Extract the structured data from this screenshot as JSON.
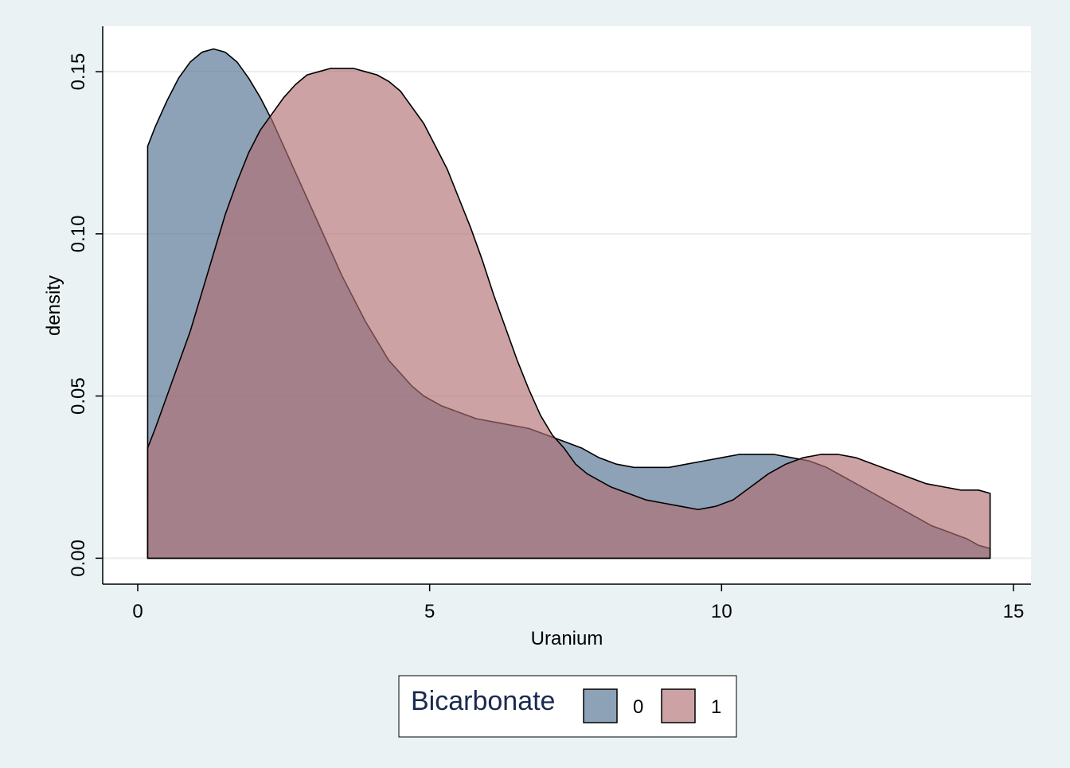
{
  "chart_data": {
    "type": "area",
    "subtype": "kernel-density",
    "xlabel": "Uranium",
    "ylabel": "density",
    "xlim": [
      -0.6,
      15.3
    ],
    "ylim": [
      -0.008,
      0.164
    ],
    "xticks": [
      0,
      5,
      10,
      15
    ],
    "xtick_labels": [
      "0",
      "5",
      "10",
      "15"
    ],
    "yticks": [
      0,
      0.05,
      0.1,
      0.15
    ],
    "ytick_labels": [
      "0.00",
      "0.05",
      "0.10",
      "0.15"
    ],
    "grid": "horizontal",
    "legend": {
      "title": "Bicarbonate",
      "position": "bottom-center",
      "entries": [
        "0",
        "1"
      ]
    },
    "series": [
      {
        "name": "0",
        "color": "#4d6d8e",
        "opacity": 0.64,
        "points": [
          [
            0.17,
            0.127
          ],
          [
            0.3,
            0.133
          ],
          [
            0.5,
            0.141
          ],
          [
            0.7,
            0.148
          ],
          [
            0.9,
            0.153
          ],
          [
            1.1,
            0.156
          ],
          [
            1.3,
            0.157
          ],
          [
            1.5,
            0.156
          ],
          [
            1.7,
            0.153
          ],
          [
            1.9,
            0.148
          ],
          [
            2.1,
            0.142
          ],
          [
            2.3,
            0.135
          ],
          [
            2.5,
            0.127
          ],
          [
            2.7,
            0.119
          ],
          [
            2.9,
            0.111
          ],
          [
            3.1,
            0.103
          ],
          [
            3.3,
            0.095
          ],
          [
            3.5,
            0.087
          ],
          [
            3.7,
            0.08
          ],
          [
            3.9,
            0.073
          ],
          [
            4.1,
            0.067
          ],
          [
            4.3,
            0.061
          ],
          [
            4.5,
            0.057
          ],
          [
            4.7,
            0.053
          ],
          [
            4.9,
            0.05
          ],
          [
            5.2,
            0.047
          ],
          [
            5.5,
            0.045
          ],
          [
            5.8,
            0.043
          ],
          [
            6.1,
            0.042
          ],
          [
            6.4,
            0.041
          ],
          [
            6.7,
            0.04
          ],
          [
            7.0,
            0.038
          ],
          [
            7.3,
            0.036
          ],
          [
            7.6,
            0.034
          ],
          [
            7.9,
            0.031
          ],
          [
            8.2,
            0.029
          ],
          [
            8.5,
            0.028
          ],
          [
            8.8,
            0.028
          ],
          [
            9.1,
            0.028
          ],
          [
            9.4,
            0.029
          ],
          [
            9.7,
            0.03
          ],
          [
            10.0,
            0.031
          ],
          [
            10.3,
            0.032
          ],
          [
            10.6,
            0.032
          ],
          [
            10.9,
            0.032
          ],
          [
            11.2,
            0.031
          ],
          [
            11.5,
            0.03
          ],
          [
            11.8,
            0.028
          ],
          [
            12.1,
            0.025
          ],
          [
            12.4,
            0.022
          ],
          [
            12.7,
            0.019
          ],
          [
            13.0,
            0.016
          ],
          [
            13.3,
            0.013
          ],
          [
            13.6,
            0.01
          ],
          [
            13.9,
            0.008
          ],
          [
            14.2,
            0.006
          ],
          [
            14.4,
            0.004
          ],
          [
            14.6,
            0.003
          ]
        ]
      },
      {
        "name": "1",
        "color": "#b06d71",
        "opacity": 0.64,
        "points": [
          [
            0.17,
            0.034
          ],
          [
            0.3,
            0.04
          ],
          [
            0.5,
            0.05
          ],
          [
            0.7,
            0.06
          ],
          [
            0.9,
            0.07
          ],
          [
            1.1,
            0.082
          ],
          [
            1.3,
            0.094
          ],
          [
            1.5,
            0.106
          ],
          [
            1.7,
            0.116
          ],
          [
            1.9,
            0.125
          ],
          [
            2.1,
            0.132
          ],
          [
            2.3,
            0.137
          ],
          [
            2.5,
            0.142
          ],
          [
            2.7,
            0.146
          ],
          [
            2.9,
            0.149
          ],
          [
            3.1,
            0.15
          ],
          [
            3.3,
            0.151
          ],
          [
            3.5,
            0.151
          ],
          [
            3.7,
            0.151
          ],
          [
            3.9,
            0.15
          ],
          [
            4.1,
            0.149
          ],
          [
            4.3,
            0.147
          ],
          [
            4.5,
            0.144
          ],
          [
            4.7,
            0.139
          ],
          [
            4.9,
            0.134
          ],
          [
            5.1,
            0.127
          ],
          [
            5.3,
            0.12
          ],
          [
            5.5,
            0.111
          ],
          [
            5.7,
            0.102
          ],
          [
            5.9,
            0.092
          ],
          [
            6.1,
            0.081
          ],
          [
            6.3,
            0.071
          ],
          [
            6.5,
            0.061
          ],
          [
            6.7,
            0.052
          ],
          [
            6.9,
            0.044
          ],
          [
            7.1,
            0.038
          ],
          [
            7.3,
            0.034
          ],
          [
            7.5,
            0.029
          ],
          [
            7.7,
            0.026
          ],
          [
            7.9,
            0.024
          ],
          [
            8.1,
            0.022
          ],
          [
            8.4,
            0.02
          ],
          [
            8.7,
            0.018
          ],
          [
            9.0,
            0.017
          ],
          [
            9.3,
            0.016
          ],
          [
            9.6,
            0.015
          ],
          [
            9.9,
            0.016
          ],
          [
            10.2,
            0.018
          ],
          [
            10.5,
            0.022
          ],
          [
            10.8,
            0.026
          ],
          [
            11.1,
            0.029
          ],
          [
            11.4,
            0.031
          ],
          [
            11.7,
            0.032
          ],
          [
            12.0,
            0.032
          ],
          [
            12.3,
            0.031
          ],
          [
            12.6,
            0.029
          ],
          [
            12.9,
            0.027
          ],
          [
            13.2,
            0.025
          ],
          [
            13.5,
            0.023
          ],
          [
            13.8,
            0.022
          ],
          [
            14.1,
            0.021
          ],
          [
            14.4,
            0.021
          ],
          [
            14.6,
            0.02
          ]
        ]
      }
    ]
  }
}
